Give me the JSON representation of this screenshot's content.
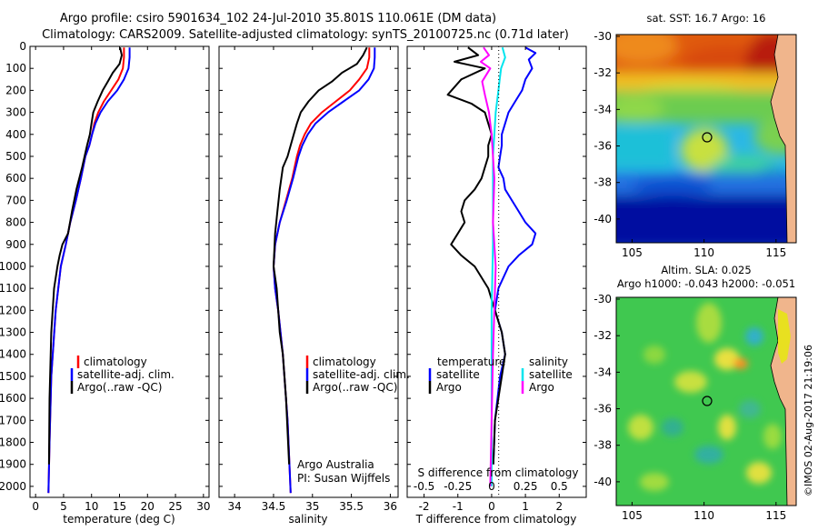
{
  "header": {
    "title1": "Argo profile: csiro 5901634_102 24-Jul-2010 35.801S 110.061E (DM data)",
    "title2": "Climatology: CARS2009. Satellite-adjusted climatology: synTS_20100725.nc (0.71d later)"
  },
  "colors": {
    "clim": "#ff0000",
    "sat": "#0000ff",
    "argo": "#000000",
    "sal_sat": "#00e5ee",
    "sal_argo": "#ff00ff"
  },
  "chart_data": [
    {
      "type": "line",
      "xlabel": "temperature (deg C)",
      "ylim": [
        0,
        2050
      ],
      "xlim": [
        -1,
        31
      ],
      "xticks": [
        0,
        5,
        10,
        15,
        20,
        25,
        30
      ],
      "yticks": [
        0,
        100,
        200,
        300,
        400,
        500,
        600,
        700,
        800,
        900,
        1000,
        1100,
        1200,
        1300,
        1400,
        1500,
        1600,
        1700,
        1800,
        1900,
        2000
      ],
      "legend": [
        "climatology",
        "satellite-adj. clim.",
        "Argo(..raw -QC)"
      ],
      "series": [
        {
          "name": "climatology",
          "x": [
            15.8,
            15.8,
            15.6,
            14.8,
            13.5,
            12.2,
            11.2,
            10.5,
            10.1,
            9.6,
            8.9,
            8.1,
            7.2,
            6.2,
            5.4,
            4.5,
            3.6,
            2.8,
            2.5,
            2.3
          ],
          "y": [
            5,
            50,
            100,
            150,
            200,
            250,
            300,
            350,
            400,
            450,
            500,
            600,
            700,
            800,
            900,
            1000,
            1200,
            1500,
            1800,
            2030
          ]
        },
        {
          "name": "satellite-adj. clim.",
          "x": [
            16.8,
            16.8,
            16.6,
            15.8,
            14.6,
            12.9,
            11.6,
            10.7,
            10.1,
            9.6,
            8.9,
            8.1,
            7.2,
            6.2,
            5.4,
            4.5,
            3.6,
            2.8,
            2.5,
            2.3
          ],
          "y": [
            5,
            50,
            100,
            150,
            200,
            250,
            300,
            350,
            400,
            450,
            500,
            600,
            700,
            800,
            900,
            1000,
            1200,
            1500,
            1800,
            2030
          ]
        },
        {
          "name": "Argo(..raw -QC)",
          "x": [
            15.1,
            15.4,
            15.0,
            13.8,
            12.9,
            12.0,
            11.1,
            10.3,
            10.0,
            9.7,
            9.2,
            8.3,
            7.3,
            6.5,
            5.8,
            4.8,
            4.3,
            3.9,
            3.3,
            2.8,
            2.5,
            2.4
          ],
          "y": [
            5,
            40,
            80,
            120,
            160,
            200,
            250,
            300,
            350,
            400,
            450,
            550,
            650,
            750,
            850,
            900,
            950,
            1000,
            1100,
            1300,
            1600,
            1900
          ]
        }
      ]
    },
    {
      "type": "line",
      "xlabel": "salinity",
      "ylim": [
        0,
        2050
      ],
      "xlim": [
        33.8,
        36.1
      ],
      "xticks": [
        34,
        34.5,
        35,
        35.5,
        36
      ],
      "xticklabels": [
        "34",
        "34.5",
        "35",
        "35.5",
        "36"
      ],
      "legend": [
        "climatology",
        "satellite-adj. clim.",
        "Argo(..raw -QC)"
      ],
      "annotation": [
        "Argo Australia",
        "PI: Susan Wijffels"
      ],
      "series": [
        {
          "name": "climatology",
          "x": [
            35.73,
            35.73,
            35.7,
            35.6,
            35.48,
            35.3,
            35.12,
            34.98,
            34.9,
            34.84,
            34.8,
            34.74,
            34.66,
            34.58,
            34.52,
            34.5,
            34.52,
            34.56,
            34.62,
            34.68,
            34.72
          ],
          "y": [
            5,
            50,
            100,
            150,
            200,
            250,
            300,
            350,
            400,
            450,
            500,
            600,
            700,
            800,
            900,
            1000,
            1100,
            1200,
            1400,
            1700,
            2030
          ]
        },
        {
          "name": "satellite-adj. clim.",
          "x": [
            35.8,
            35.8,
            35.79,
            35.72,
            35.6,
            35.4,
            35.2,
            35.04,
            34.94,
            34.87,
            34.82,
            34.75,
            34.67,
            34.58,
            34.52,
            34.5,
            34.52,
            34.56,
            34.62,
            34.68,
            34.72
          ],
          "y": [
            5,
            50,
            100,
            150,
            200,
            250,
            300,
            350,
            400,
            450,
            500,
            600,
            700,
            800,
            900,
            1000,
            1100,
            1200,
            1400,
            1700,
            2030
          ]
        },
        {
          "name": "Argo(..raw -QC)",
          "x": [
            35.7,
            35.65,
            35.57,
            35.38,
            35.25,
            35.08,
            34.95,
            34.85,
            34.8,
            34.76,
            34.72,
            34.68,
            34.62,
            34.58,
            34.55,
            34.52,
            34.5,
            34.54,
            34.56,
            34.58,
            34.62,
            34.66,
            34.7
          ],
          "y": [
            5,
            40,
            80,
            120,
            160,
            200,
            250,
            300,
            350,
            400,
            450,
            500,
            550,
            650,
            750,
            850,
            1000,
            1100,
            1200,
            1300,
            1400,
            1600,
            1900
          ]
        }
      ]
    },
    {
      "type": "line",
      "xlabel": "T difference from climatology",
      "xlabel2": "S difference from climatology",
      "ylim": [
        0,
        2050
      ],
      "xlim": [
        -2.5,
        2.8
      ],
      "xticks": [
        -2,
        -1,
        0,
        1,
        2
      ],
      "xticks_top": [
        -0.5,
        -0.25,
        0,
        0.25,
        0.5
      ],
      "xticklabels_top": [
        "-0.5",
        "-0.25",
        "0",
        "0.25",
        "0.5"
      ],
      "legend_t_title": "temperature",
      "legend_s_title": "salinity",
      "legend_t": [
        "satellite",
        "Argo"
      ],
      "legend_s": [
        "satellite",
        "Argo"
      ],
      "series": [
        {
          "name": "satellite",
          "x": [
            1.0,
            1.3,
            1.1,
            1.2,
            1.0,
            0.9,
            0.7,
            0.5,
            0.4,
            0.3,
            0.3,
            0.25,
            0.2,
            0.35,
            0.4,
            0.6,
            0.8,
            1.0,
            1.3,
            1.2,
            0.8,
            0.5,
            0.2,
            0.1,
            0.3,
            0.4,
            0.25,
            0.1,
            0.05
          ],
          "y": [
            5,
            30,
            60,
            100,
            150,
            200,
            250,
            300,
            350,
            400,
            450,
            500,
            550,
            600,
            650,
            700,
            750,
            800,
            850,
            900,
            950,
            1000,
            1100,
            1200,
            1300,
            1400,
            1500,
            1700,
            1900
          ]
        },
        {
          "name": "Argo",
          "x": [
            -0.7,
            -0.4,
            -1.1,
            -0.2,
            -0.9,
            -1.3,
            -0.6,
            -0.2,
            -0.1,
            0.0,
            -0.1,
            -0.1,
            -0.2,
            -0.3,
            -0.5,
            -0.8,
            -0.9,
            -0.8,
            -1.0,
            -1.2,
            -0.9,
            -0.5,
            -0.1,
            0.1,
            0.3,
            0.4,
            0.3,
            0.1,
            0.05
          ],
          "y": [
            5,
            40,
            70,
            100,
            150,
            220,
            260,
            300,
            350,
            400,
            450,
            500,
            550,
            600,
            650,
            700,
            750,
            800,
            850,
            900,
            950,
            1000,
            1100,
            1200,
            1300,
            1400,
            1500,
            1700,
            1900
          ]
        },
        {
          "name": "satellite",
          "x": [
            0.08,
            0.1,
            0.07,
            0.06,
            0.05,
            0.04,
            0.03,
            0.02,
            0.01,
            0.01,
            0.01,
            0.0,
            0.0,
            0.0
          ],
          "y": [
            5,
            50,
            100,
            150,
            200,
            250,
            300,
            400,
            500,
            700,
            900,
            1200,
            1600,
            2000
          ]
        },
        {
          "name": "Argo",
          "x": [
            -0.06,
            -0.02,
            -0.08,
            -0.01,
            -0.07,
            -0.05,
            -0.02,
            -0.01,
            0.0,
            0.01,
            0.02,
            0.01,
            0.03,
            0.02,
            0.01,
            0.0,
            -0.01
          ],
          "y": [
            5,
            40,
            70,
            100,
            160,
            220,
            300,
            350,
            400,
            500,
            600,
            800,
            1000,
            1200,
            1400,
            1700,
            2000
          ]
        }
      ]
    }
  ],
  "maps": {
    "top": {
      "title": "sat. SST: 16.7  Argo: 16",
      "xticks": [
        "105",
        "110",
        "115"
      ],
      "yticks": [
        "-30",
        "-32",
        "-34",
        "-36",
        "-38",
        "-40"
      ]
    },
    "bottom": {
      "title1": "Altim. SLA: 0.025",
      "title2": "Argo h1000: -0.043  h2000: -0.051",
      "xticks": [
        "105",
        "110",
        "115"
      ],
      "yticks": [
        "-30",
        "-32",
        "-34",
        "-36",
        "-38",
        "-40"
      ]
    }
  },
  "credit": "©IMOS 02-Aug-2017 21:19:06"
}
